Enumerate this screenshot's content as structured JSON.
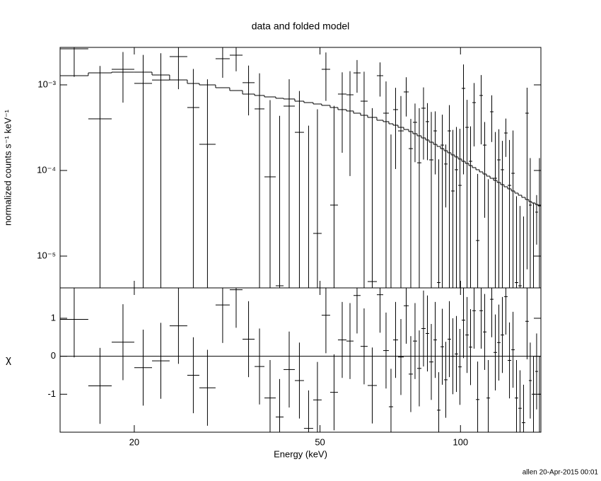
{
  "chart_data": [
    {
      "type": "spectrum",
      "title": "data and folded model",
      "ylabel": "normalized counts s⁻¹ keV⁻¹",
      "log_x": true,
      "log_y": true,
      "xlim": [
        13.87,
        148.7
      ],
      "xticks": [
        20,
        50,
        100
      ],
      "ylim": [
        4.25e-06,
        0.00274
      ],
      "yticks": [
        {
          "value": 1e-05,
          "label": "10⁻⁵"
        },
        {
          "value": 0.0001,
          "label": "10⁻⁴"
        },
        {
          "value": 0.001,
          "label": "10⁻³"
        }
      ],
      "bins": [
        13.87,
        15.94,
        17.89,
        20.0,
        21.83,
        23.81,
        25.98,
        27.57,
        29.87,
        32.03,
        34.12,
        36.21,
        38.01,
        40.19,
        41.77,
        44.16,
        46.2,
        48.35,
        50.41,
        52.57,
        54.63,
        56.98,
        58.99,
        61.08,
        63.25,
        66.19,
        68.3,
        70.23,
        71.72,
        73.49,
        75.58,
        77.45,
        79.07,
        80.75,
        82.46,
        84.2,
        85.69,
        87.5,
        89.05,
        90.62,
        92.2,
        93.83,
        95.48,
        97.16,
        98.86,
        100.6,
        102.4,
        104.2,
        106.0,
        107.9,
        109.8,
        111.7,
        113.7,
        115.7,
        117.7,
        119.8,
        121.9,
        124.0,
        126.2,
        128.5,
        130.7,
        133.0,
        135.3,
        137.7,
        140.1,
        142.1,
        144.6,
        146.6,
        148.7
      ],
      "data": {
        "color": "#000000",
        "values": [
          0.00264,
          0.000401,
          0.00152,
          0.00104,
          0.00114,
          0.00214,
          0.000544,
          0.000202,
          0.00202,
          0.00222,
          0.00106,
          0.000524,
          8.42e-05,
          4.5e-06,
          0.000565,
          0.000279,
          4e-06,
          1.84e-05,
          0.00152,
          3.94e-05,
          0.000781,
          0.000766,
          0.00138,
          0.000645,
          5.04e-06,
          0.00128,
          0.000467,
          3e-06,
          0.000514,
          0.00029,
          0.000827,
          0.00018,
          0.000365,
          0.000123,
          0.000534,
          0.000372,
          0.000133,
          0.00029,
          4.9e-06,
          0.000198,
          0.000119,
          0.00029,
          5.76e-05,
          0.000102,
          6.7e-05,
          0.00091,
          0.000319,
          0.000128,
          0.000621,
          1.52e-05,
          0.000752,
          0.000198,
          4e-06,
          0.000485,
          8.11e-05,
          0.000133,
          0.000102,
          0.000274,
          6.7e-05,
          9.27e-05,
          4.9e-06,
          4.5e-06,
          4e-06,
          0.000467,
          3.94e-05,
          4.2e-06,
          3.26e-05,
          3.94e-05
        ],
        "errors": [
          0.0014,
          0.00126,
          0.0009,
          0.0012,
          0.0012,
          0.00125,
          0.00099,
          0.00096,
          0.00081,
          0.00078,
          0.00062,
          0.00084,
          0.00058,
          0.00043,
          0.0006,
          0.00057,
          0.00033,
          0.0005,
          0.00087,
          0.00053,
          0.00062,
          0.00068,
          0.00057,
          0.00078,
          0.00053,
          0.00055,
          0.00063,
          0.00026,
          0.00041,
          0.00045,
          0.0004,
          0.00022,
          0.00024,
          0.00041,
          0.0004,
          0.00024,
          0.00035,
          0.0002,
          0.00013,
          0.00025,
          8.2e-05,
          0.00029,
          0.00024,
          0.00022,
          0.00024,
          0.00082,
          0.00035,
          0.0002,
          0.00043,
          7.6e-05,
          0.00055,
          0.00017,
          7.5e-05,
          0.00027,
          0.0002,
          0.00017,
          0.00012,
          0.00013,
          0.00016,
          0.0002,
          4.5e-05,
          3.4e-05,
          2.5e-05,
          0.00046,
          0.0001,
          3.8e-05,
          1.9e-05,
          0.0001
        ]
      },
      "model": {
        "color": "#000000",
        "values": [
          0.001281,
          0.001382,
          0.001409,
          0.001409,
          0.001305,
          0.001143,
          0.001039,
          0.001,
          0.000927,
          0.000859,
          0.000781,
          0.000752,
          0.000724,
          0.000697,
          0.000684,
          0.000645,
          0.000621,
          0.000598,
          0.000576,
          0.000544,
          0.000514,
          0.000495,
          0.000467,
          0.000441,
          0.000417,
          0.000386,
          0.000372,
          0.000351,
          0.000338,
          0.000319,
          0.000301,
          0.000285,
          0.000269,
          0.000254,
          0.00024,
          0.000227,
          0.000214,
          0.000202,
          0.000191,
          0.00018,
          0.00017,
          0.000161,
          0.000152,
          0.000144,
          0.000136,
          0.000128,
          0.000121,
          0.000114,
          0.000108,
          0.000102,
          9.63e-05,
          9.09e-05,
          8.59e-05,
          8.11e-05,
          7.66e-05,
          7.24e-05,
          6.84e-05,
          6.45e-05,
          6.1e-05,
          5.76e-05,
          5.44e-05,
          5.14e-05,
          4.85e-05,
          4.58e-05,
          4.33e-05,
          4.17e-05,
          4.01e-05,
          3.86e-05
        ]
      }
    },
    {
      "type": "residuals",
      "xlabel": "Energy (keV)",
      "ylabel": "χ",
      "log_x": true,
      "xlim": [
        13.87,
        148.7
      ],
      "xticks": [
        20,
        50,
        100
      ],
      "ylim": [
        -2,
        1.8
      ],
      "yticks": [
        -1,
        0,
        1
      ],
      "color": "#000000",
      "values": [
        0.97,
        -0.78,
        0.37,
        -0.3,
        -0.12,
        0.8,
        -0.5,
        -0.83,
        1.35,
        1.75,
        0.45,
        -0.27,
        -1.1,
        -1.6,
        -0.35,
        -0.64,
        -1.9,
        -1.15,
        1.08,
        -0.95,
        0.43,
        0.4,
        1.6,
        0.26,
        -0.77,
        1.62,
        0.15,
        -1.33,
        0.43,
        -0.02,
        1.33,
        -0.47,
        0.4,
        -0.32,
        0.73,
        0.6,
        -0.15,
        0.43,
        -1.42,
        0.25,
        -0.62,
        0.45,
        0,
        0.06,
        -0.28,
        0.95,
        0.56,
        0.24,
        1.2,
        -1.14,
        1.2,
        0.64,
        -1.1,
        1.5,
        0.1,
        0.36,
        0.56,
        1.57,
        -0.11,
        0.17,
        -1.1,
        -1.37,
        -1.75,
        0.92,
        -0.64,
        -1.0,
        -0.4,
        -1.0
      ],
      "errors": [
        1,
        1,
        1,
        1,
        1,
        1,
        1,
        1,
        1,
        1,
        1,
        1,
        1,
        1,
        1,
        1,
        1,
        1,
        1,
        1,
        1,
        1,
        1,
        1,
        1,
        1,
        1,
        1,
        1,
        1,
        1,
        1,
        1,
        1,
        1,
        1,
        1,
        1,
        1,
        1,
        1,
        1,
        1,
        1,
        1,
        1,
        1,
        1,
        1,
        1,
        1,
        1,
        1,
        1,
        1,
        1,
        1,
        1,
        1,
        1,
        1,
        1,
        1,
        1,
        1,
        1,
        1,
        1
      ],
      "reference_line": {
        "value": 0,
        "color": "#00dd00"
      }
    }
  ],
  "footer": "allen 20-Apr-2015 00:01"
}
